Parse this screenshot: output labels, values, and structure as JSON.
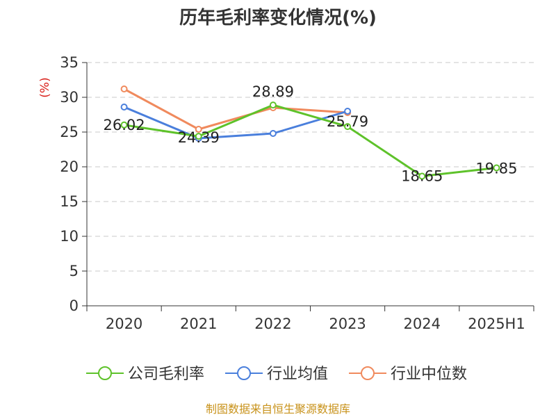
{
  "chart_data": {
    "type": "line",
    "title": "历年毛利率变化情况(%)",
    "ylabel": "(%)",
    "categories": [
      "2020",
      "2021",
      "2022",
      "2023",
      "2024",
      "2025H1"
    ],
    "ylim": [
      0,
      35
    ],
    "yticks": [
      0,
      5,
      10,
      15,
      20,
      25,
      30,
      35
    ],
    "grid": true,
    "legend_position": "bottom",
    "series": [
      {
        "name": "公司毛利率",
        "color": "#5ec22a",
        "values": [
          26.02,
          24.39,
          28.89,
          25.79,
          18.65,
          19.85
        ],
        "data_labels": [
          "26.02",
          "24.39",
          "28.89",
          "25.79",
          "18.65",
          "19.85"
        ]
      },
      {
        "name": "行业均值",
        "color": "#4a7fdc",
        "values": [
          28.6,
          24.1,
          24.8,
          28.0,
          null,
          null
        ]
      },
      {
        "name": "行业中位数",
        "color": "#f08a5d",
        "values": [
          31.2,
          25.4,
          28.5,
          27.8,
          null,
          null
        ]
      }
    ]
  },
  "source_text": "制图数据来自恒生聚源数据库"
}
